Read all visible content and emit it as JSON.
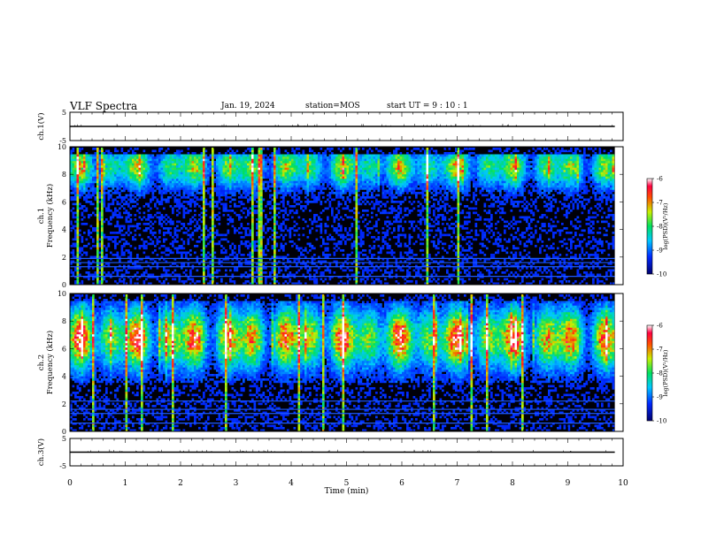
{
  "header": {
    "title": "VLF Spectra",
    "date": "Jan. 19, 2024",
    "station": "station=MOS",
    "start": "start UT =  9 : 10 : 1"
  },
  "chart_data": [
    {
      "type": "line",
      "panel": "ch1-waveform",
      "ylabel": "ch.1(V)",
      "ylim": [
        -5,
        5
      ],
      "yticks": [
        "5",
        "-5"
      ],
      "xlim": [
        0,
        10
      ],
      "series": [
        {
          "x": [
            0,
            9.85
          ],
          "values": [
            0,
            0
          ]
        }
      ],
      "colors": {
        "line": "#000000"
      }
    },
    {
      "type": "heatmap",
      "panel": "ch1-spectrogram",
      "ylabel": "ch.1 Frequency (kHz)",
      "ylabel_lines": [
        "ch.1",
        "Frequency (kHz)"
      ],
      "ylim": [
        0,
        10
      ],
      "yticks": [
        "0",
        "2",
        "4",
        "6",
        "8",
        "10"
      ],
      "xlim": [
        0,
        10
      ],
      "data_extent_x": [
        0,
        9.85
      ],
      "colorbar": {
        "ticks": [
          "-6",
          "-7",
          "-8",
          "-9",
          "-10"
        ],
        "range": [
          -10,
          -6
        ],
        "label": "log(PSD)(V²/Hz)"
      },
      "features": {
        "emission_band_khz": [
          5.5,
          9.5
        ],
        "peak_khz": 8.6,
        "intensity": 0.6,
        "line_khz": [
          0.6,
          1.3,
          1.6,
          1.9
        ]
      }
    },
    {
      "type": "heatmap",
      "panel": "ch2-spectrogram",
      "ylabel": "ch.2 Frequency (kHz)",
      "ylabel_lines": [
        "ch.2",
        "Frequency (kHz)"
      ],
      "ylim": [
        0,
        10
      ],
      "yticks": [
        "0",
        "2",
        "4",
        "6",
        "8",
        "10"
      ],
      "xlim": [
        0,
        10
      ],
      "data_extent_x": [
        0,
        9.85
      ],
      "colorbar": {
        "ticks": [
          "-6",
          "-7",
          "-8",
          "-9",
          "-10"
        ],
        "range": [
          -10,
          -6
        ],
        "label": "log(PSD)(V²/Hz)"
      },
      "features": {
        "emission_band_khz": [
          3.5,
          9.5
        ],
        "peak_khz": 6.8,
        "intensity": 0.85,
        "line_khz": [
          0.6,
          1.3,
          1.6,
          2.2
        ]
      }
    },
    {
      "type": "line",
      "panel": "ch3-waveform",
      "ylabel": "ch.3(V)",
      "ylim": [
        -5,
        5
      ],
      "yticks": [
        "5",
        "-5"
      ],
      "xlim": [
        0,
        10
      ],
      "xlabel": "Time (min)",
      "xticks": [
        "0",
        "1",
        "2",
        "3",
        "4",
        "5",
        "6",
        "7",
        "8",
        "9",
        "10"
      ],
      "series": [
        {
          "x": [
            0,
            9.85
          ],
          "values": [
            0,
            0
          ]
        }
      ],
      "colors": {
        "line": "#000000"
      }
    }
  ]
}
